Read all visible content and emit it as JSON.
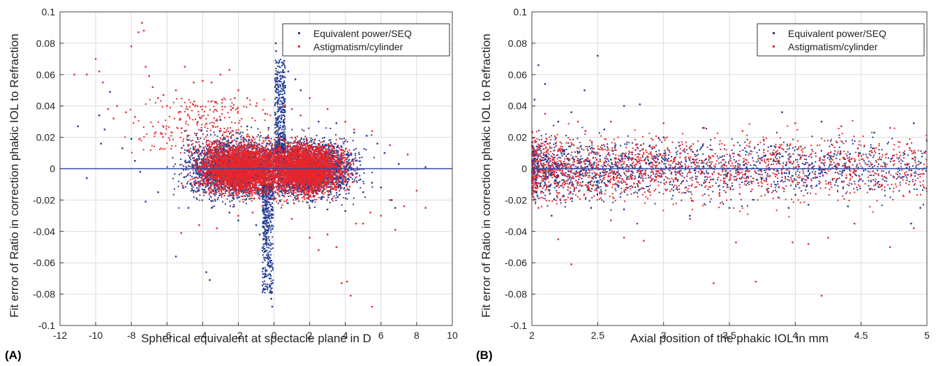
{
  "figure": {
    "panel_labels": [
      "(A)",
      "(B)"
    ]
  },
  "chart_data": [
    {
      "type": "scatter",
      "panel": "(A)",
      "title": "",
      "xlabel": "Spherical equivalent at spectacle plane in D",
      "ylabel": "Fit error of Ratio in correction phakic IOL to Refraction",
      "xlim": [
        -12,
        10
      ],
      "ylim": [
        -0.1,
        0.1
      ],
      "xticks": [
        "-12",
        "-10",
        "-8",
        "-6",
        "-4",
        "-2",
        "0",
        "2",
        "4",
        "6",
        "8",
        "10"
      ],
      "yticks": [
        "0.1",
        "0.08",
        "0.06",
        "0.04",
        "0.02",
        "0",
        "-0.02",
        "-0.04",
        "-0.06",
        "-0.08",
        "-0.1"
      ],
      "grid": true,
      "legend_position": "top-right",
      "reference_line_y": 0,
      "series": [
        {
          "name": "Equivalent power/SEQ",
          "color": "#1f3a93",
          "points": [
            [
              -11,
              0.027
            ],
            [
              -10.5,
              -0.006
            ],
            [
              -9.8,
              0.034
            ],
            [
              -9.7,
              0.016
            ],
            [
              -9.5,
              0.025
            ],
            [
              -9.2,
              0.049
            ],
            [
              -8.5,
              0.013
            ],
            [
              -8.0,
              0.019
            ],
            [
              -7.8,
              0.005
            ],
            [
              -7.5,
              -0.002
            ],
            [
              -7.2,
              -0.021
            ],
            [
              -6.5,
              -0.015
            ],
            [
              -5.5,
              -0.056
            ],
            [
              -3.8,
              -0.066
            ],
            [
              -3.6,
              -0.071
            ],
            [
              -5.0,
              0.024
            ],
            [
              -4.8,
              -0.025
            ],
            [
              -4.5,
              -0.014
            ],
            [
              -3.5,
              -0.025
            ],
            [
              -3.0,
              0.031
            ],
            [
              -2.5,
              -0.028
            ],
            [
              -2.0,
              -0.033
            ],
            [
              -1.5,
              0.027
            ],
            [
              -1.0,
              -0.036
            ],
            [
              -0.8,
              -0.042
            ],
            [
              -0.5,
              -0.048
            ],
            [
              -0.4,
              -0.055
            ],
            [
              -0.3,
              -0.062
            ],
            [
              -0.25,
              -0.07
            ],
            [
              -0.2,
              -0.078
            ],
            [
              -0.15,
              -0.083
            ],
            [
              -0.1,
              -0.088
            ],
            [
              -0.3,
              0.026
            ],
            [
              -0.6,
              -0.025
            ],
            [
              0.1,
              0.08
            ],
            [
              0.12,
              0.075
            ],
            [
              0.15,
              0.068
            ],
            [
              0.2,
              0.06
            ],
            [
              0.25,
              0.052
            ],
            [
              0.3,
              0.045
            ],
            [
              0.35,
              0.038
            ],
            [
              0.4,
              0.032
            ],
            [
              0.5,
              0.027
            ],
            [
              0.8,
              0.062
            ],
            [
              1.2,
              0.057
            ],
            [
              1.5,
              0.05
            ],
            [
              2.0,
              -0.025
            ],
            [
              2.5,
              0.03
            ],
            [
              3.0,
              -0.026
            ],
            [
              3.5,
              0.029
            ],
            [
              4.0,
              -0.027
            ],
            [
              4.5,
              0.023
            ],
            [
              5.0,
              -0.015
            ],
            [
              5.2,
              0.021
            ],
            [
              5.5,
              -0.009
            ],
            [
              5.8,
              0.016
            ],
            [
              6.0,
              -0.012
            ],
            [
              6.2,
              0.01
            ],
            [
              6.6,
              -0.02
            ],
            [
              6.8,
              -0.025
            ],
            [
              7.0,
              0.003
            ],
            [
              8.5,
              0.001
            ]
          ]
        },
        {
          "name": "Astigmatism/cylinder",
          "color": "#e8262a",
          "points": [
            [
              -11.2,
              0.06
            ],
            [
              -10.5,
              0.06
            ],
            [
              -10.0,
              0.07
            ],
            [
              -9.8,
              0.062
            ],
            [
              -9.6,
              0.055
            ],
            [
              -9.3,
              0.038
            ],
            [
              -9.0,
              0.032
            ],
            [
              -8.8,
              0.04
            ],
            [
              -8.3,
              0.036
            ],
            [
              -8.0,
              0.078
            ],
            [
              -7.8,
              0.033
            ],
            [
              -7.6,
              0.087
            ],
            [
              -7.4,
              0.093
            ],
            [
              -7.3,
              0.088
            ],
            [
              -7.2,
              0.065
            ],
            [
              -7.0,
              0.059
            ],
            [
              -6.8,
              0.052
            ],
            [
              -6.5,
              0.045
            ],
            [
              -6.2,
              0.047
            ],
            [
              -6.0,
              0.04
            ],
            [
              -5.5,
              0.05
            ],
            [
              -5.0,
              0.065
            ],
            [
              -4.5,
              0.055
            ],
            [
              -4.0,
              0.056
            ],
            [
              -3.5,
              0.055
            ],
            [
              -3.0,
              0.06
            ],
            [
              -2.5,
              0.063
            ],
            [
              -2.2,
              0.045
            ],
            [
              -2.0,
              0.05
            ],
            [
              -1.5,
              0.045
            ],
            [
              -1.0,
              0.04
            ],
            [
              -0.5,
              0.035
            ],
            [
              -5.2,
              -0.041
            ],
            [
              -4.2,
              -0.036
            ],
            [
              -3.2,
              -0.038
            ],
            [
              -2.0,
              -0.03
            ],
            [
              -1.2,
              -0.028
            ],
            [
              1.0,
              -0.032
            ],
            [
              2.0,
              -0.044
            ],
            [
              2.5,
              -0.052
            ],
            [
              3.0,
              -0.042
            ],
            [
              3.5,
              -0.05
            ],
            [
              3.8,
              -0.073
            ],
            [
              4.1,
              -0.072
            ],
            [
              4.3,
              -0.081
            ],
            [
              4.6,
              -0.035
            ],
            [
              5.0,
              -0.035
            ],
            [
              5.4,
              -0.028
            ],
            [
              6.0,
              -0.03
            ],
            [
              6.5,
              -0.02
            ],
            [
              6.8,
              -0.039
            ],
            [
              7.3,
              -0.024
            ],
            [
              8.0,
              -0.014
            ],
            [
              8.5,
              -0.025
            ],
            [
              5.5,
              -0.088
            ],
            [
              2.0,
              0.045
            ],
            [
              3.0,
              0.038
            ],
            [
              4.0,
              0.03
            ],
            [
              4.5,
              0.025
            ],
            [
              5.5,
              0.024
            ],
            [
              6.5,
              0.015
            ],
            [
              7.5,
              0.009
            ],
            [
              0.6,
              0.04
            ],
            [
              1.0,
              0.038
            ],
            [
              1.5,
              0.034
            ]
          ]
        }
      ]
    },
    {
      "type": "scatter",
      "panel": "(B)",
      "title": "",
      "xlabel": "Axial position of the phakic IOL in mm",
      "ylabel": "Fit error of Ratio in correction phakic IOL to Refraction",
      "xlim": [
        2,
        5
      ],
      "ylim": [
        -0.1,
        0.1
      ],
      "xticks": [
        "2",
        "2.5",
        "3",
        "3.5",
        "4",
        "4.5",
        "5"
      ],
      "yticks": [
        "0.1",
        "0.08",
        "0.06",
        "0.04",
        "0.02",
        "0",
        "-0.02",
        "-0.04",
        "-0.06",
        "-0.08",
        "-0.1"
      ],
      "grid": true,
      "legend_position": "top-right",
      "reference_line_y": 0,
      "series": [
        {
          "name": "Equivalent power/SEQ",
          "color": "#1f3a93",
          "points": [
            [
              2.02,
              0.044
            ],
            [
              2.05,
              0.066
            ],
            [
              2.1,
              0.054
            ],
            [
              2.2,
              0.03
            ],
            [
              2.3,
              0.036
            ],
            [
              2.4,
              0.05
            ],
            [
              2.5,
              0.072
            ],
            [
              2.55,
              0.025
            ],
            [
              2.7,
              0.04
            ],
            [
              2.82,
              0.041
            ],
            [
              3.0,
              0.02
            ],
            [
              3.3,
              0.026
            ],
            [
              3.9,
              0.036
            ],
            [
              4.2,
              0.03
            ],
            [
              4.6,
              0.023
            ],
            [
              4.9,
              0.029
            ],
            [
              2.15,
              -0.03
            ],
            [
              2.45,
              -0.025
            ],
            [
              2.7,
              -0.026
            ],
            [
              3.2,
              -0.03
            ],
            [
              3.5,
              -0.025
            ],
            [
              3.95,
              -0.025
            ],
            [
              4.1,
              -0.023
            ],
            [
              4.4,
              -0.024
            ],
            [
              4.88,
              -0.035
            ],
            [
              4.95,
              -0.025
            ]
          ]
        },
        {
          "name": "Astigmatism/cylinder",
          "color": "#e8262a",
          "points": [
            [
              2.05,
              -0.025
            ],
            [
              2.2,
              -0.045
            ],
            [
              2.3,
              -0.061
            ],
            [
              2.6,
              -0.033
            ],
            [
              2.7,
              -0.044
            ],
            [
              2.8,
              -0.035
            ],
            [
              2.85,
              -0.046
            ],
            [
              3.2,
              -0.032
            ],
            [
              3.38,
              -0.073
            ],
            [
              3.55,
              -0.047
            ],
            [
              3.7,
              -0.072
            ],
            [
              3.98,
              -0.047
            ],
            [
              4.1,
              -0.048
            ],
            [
              4.2,
              -0.081
            ],
            [
              4.25,
              -0.044
            ],
            [
              4.45,
              -0.035
            ],
            [
              4.72,
              -0.05
            ],
            [
              4.9,
              -0.038
            ],
            [
              2.1,
              0.035
            ],
            [
              2.35,
              0.03
            ],
            [
              2.6,
              0.03
            ],
            [
              3.0,
              0.029
            ],
            [
              3.6,
              0.024
            ],
            [
              4.0,
              0.029
            ],
            [
              4.35,
              0.027
            ],
            [
              4.72,
              0.026
            ]
          ]
        }
      ]
    }
  ]
}
